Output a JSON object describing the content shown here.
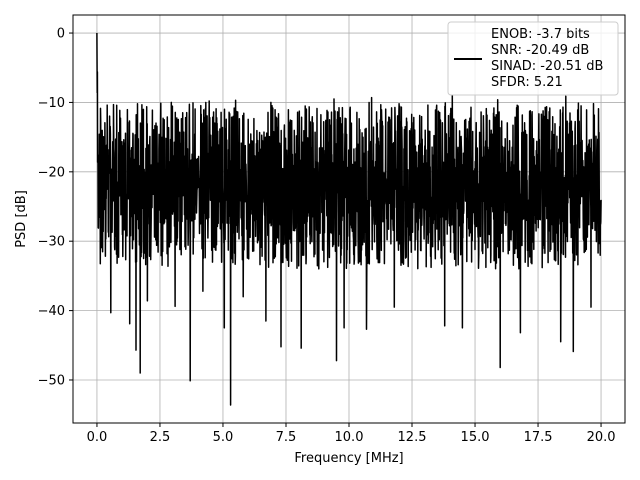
{
  "chart_data": {
    "type": "line",
    "title": "",
    "xlabel": "Frequency [MHz]",
    "ylabel": "PSD [dB]",
    "xlim": [
      -0.95,
      20.95
    ],
    "ylim": [
      -56.2,
      2.6
    ],
    "x_ticks": [
      0.0,
      2.5,
      5.0,
      7.5,
      10.0,
      12.5,
      15.0,
      17.5,
      20.0
    ],
    "x_tick_labels": [
      "0.0",
      "2.5",
      "5.0",
      "7.5",
      "10.0",
      "12.5",
      "15.0",
      "17.5",
      "20.0"
    ],
    "y_ticks": [
      0,
      -10,
      -20,
      -30,
      -40,
      -50
    ],
    "y_tick_labels": [
      "0",
      "−10",
      "−20",
      "−30",
      "−40",
      "−50"
    ],
    "grid": true,
    "legend_position": "top-right",
    "legend": [
      "ENOB: -3.7 bits",
      "SNR: -20.49 dB",
      "SINAD: -20.51 dB",
      "SFDR: 5.21"
    ],
    "series": [
      {
        "color": "#000000",
        "peak": {
          "x": 0.0,
          "y": 0.0
        },
        "noise_floor_mean": -21,
        "noise_band_min": -34,
        "noise_band_max": -10,
        "dips": [
          {
            "x": 0.55,
            "y": -40.3
          },
          {
            "x": 1.3,
            "y": -41.9
          },
          {
            "x": 1.55,
            "y": -45.7
          },
          {
            "x": 1.72,
            "y": -49.0
          },
          {
            "x": 2.0,
            "y": -38.6
          },
          {
            "x": 3.1,
            "y": -39.4
          },
          {
            "x": 3.7,
            "y": -50.1
          },
          {
            "x": 4.2,
            "y": -37.2
          },
          {
            "x": 5.05,
            "y": -42.5
          },
          {
            "x": 5.3,
            "y": -53.6
          },
          {
            "x": 5.8,
            "y": -38.0
          },
          {
            "x": 6.7,
            "y": -41.5
          },
          {
            "x": 7.3,
            "y": -45.2
          },
          {
            "x": 8.1,
            "y": -45.4
          },
          {
            "x": 9.5,
            "y": -47.2
          },
          {
            "x": 9.8,
            "y": -42.5
          },
          {
            "x": 10.7,
            "y": -42.7
          },
          {
            "x": 11.8,
            "y": -39.5
          },
          {
            "x": 13.8,
            "y": -42.2
          },
          {
            "x": 14.5,
            "y": -42.5
          },
          {
            "x": 16.0,
            "y": -48.2
          },
          {
            "x": 16.8,
            "y": -43.2
          },
          {
            "x": 18.4,
            "y": -44.5
          },
          {
            "x": 18.9,
            "y": -45.9
          },
          {
            "x": 19.6,
            "y": -39.5
          }
        ],
        "spikes": [
          {
            "x": 0.02,
            "y": -5.6
          },
          {
            "x": 0.15,
            "y": -12.6
          },
          {
            "x": 2.2,
            "y": -11.1
          },
          {
            "x": 2.95,
            "y": -10.0
          },
          {
            "x": 4.3,
            "y": -10.9
          },
          {
            "x": 4.45,
            "y": -9.8
          },
          {
            "x": 5.5,
            "y": -9.7
          },
          {
            "x": 6.9,
            "y": -10.0
          },
          {
            "x": 9.4,
            "y": -9.5
          },
          {
            "x": 10.9,
            "y": -9.3
          },
          {
            "x": 14.1,
            "y": -9.0
          },
          {
            "x": 15.9,
            "y": -9.6
          },
          {
            "x": 18.6,
            "y": -9.1
          }
        ]
      }
    ]
  }
}
